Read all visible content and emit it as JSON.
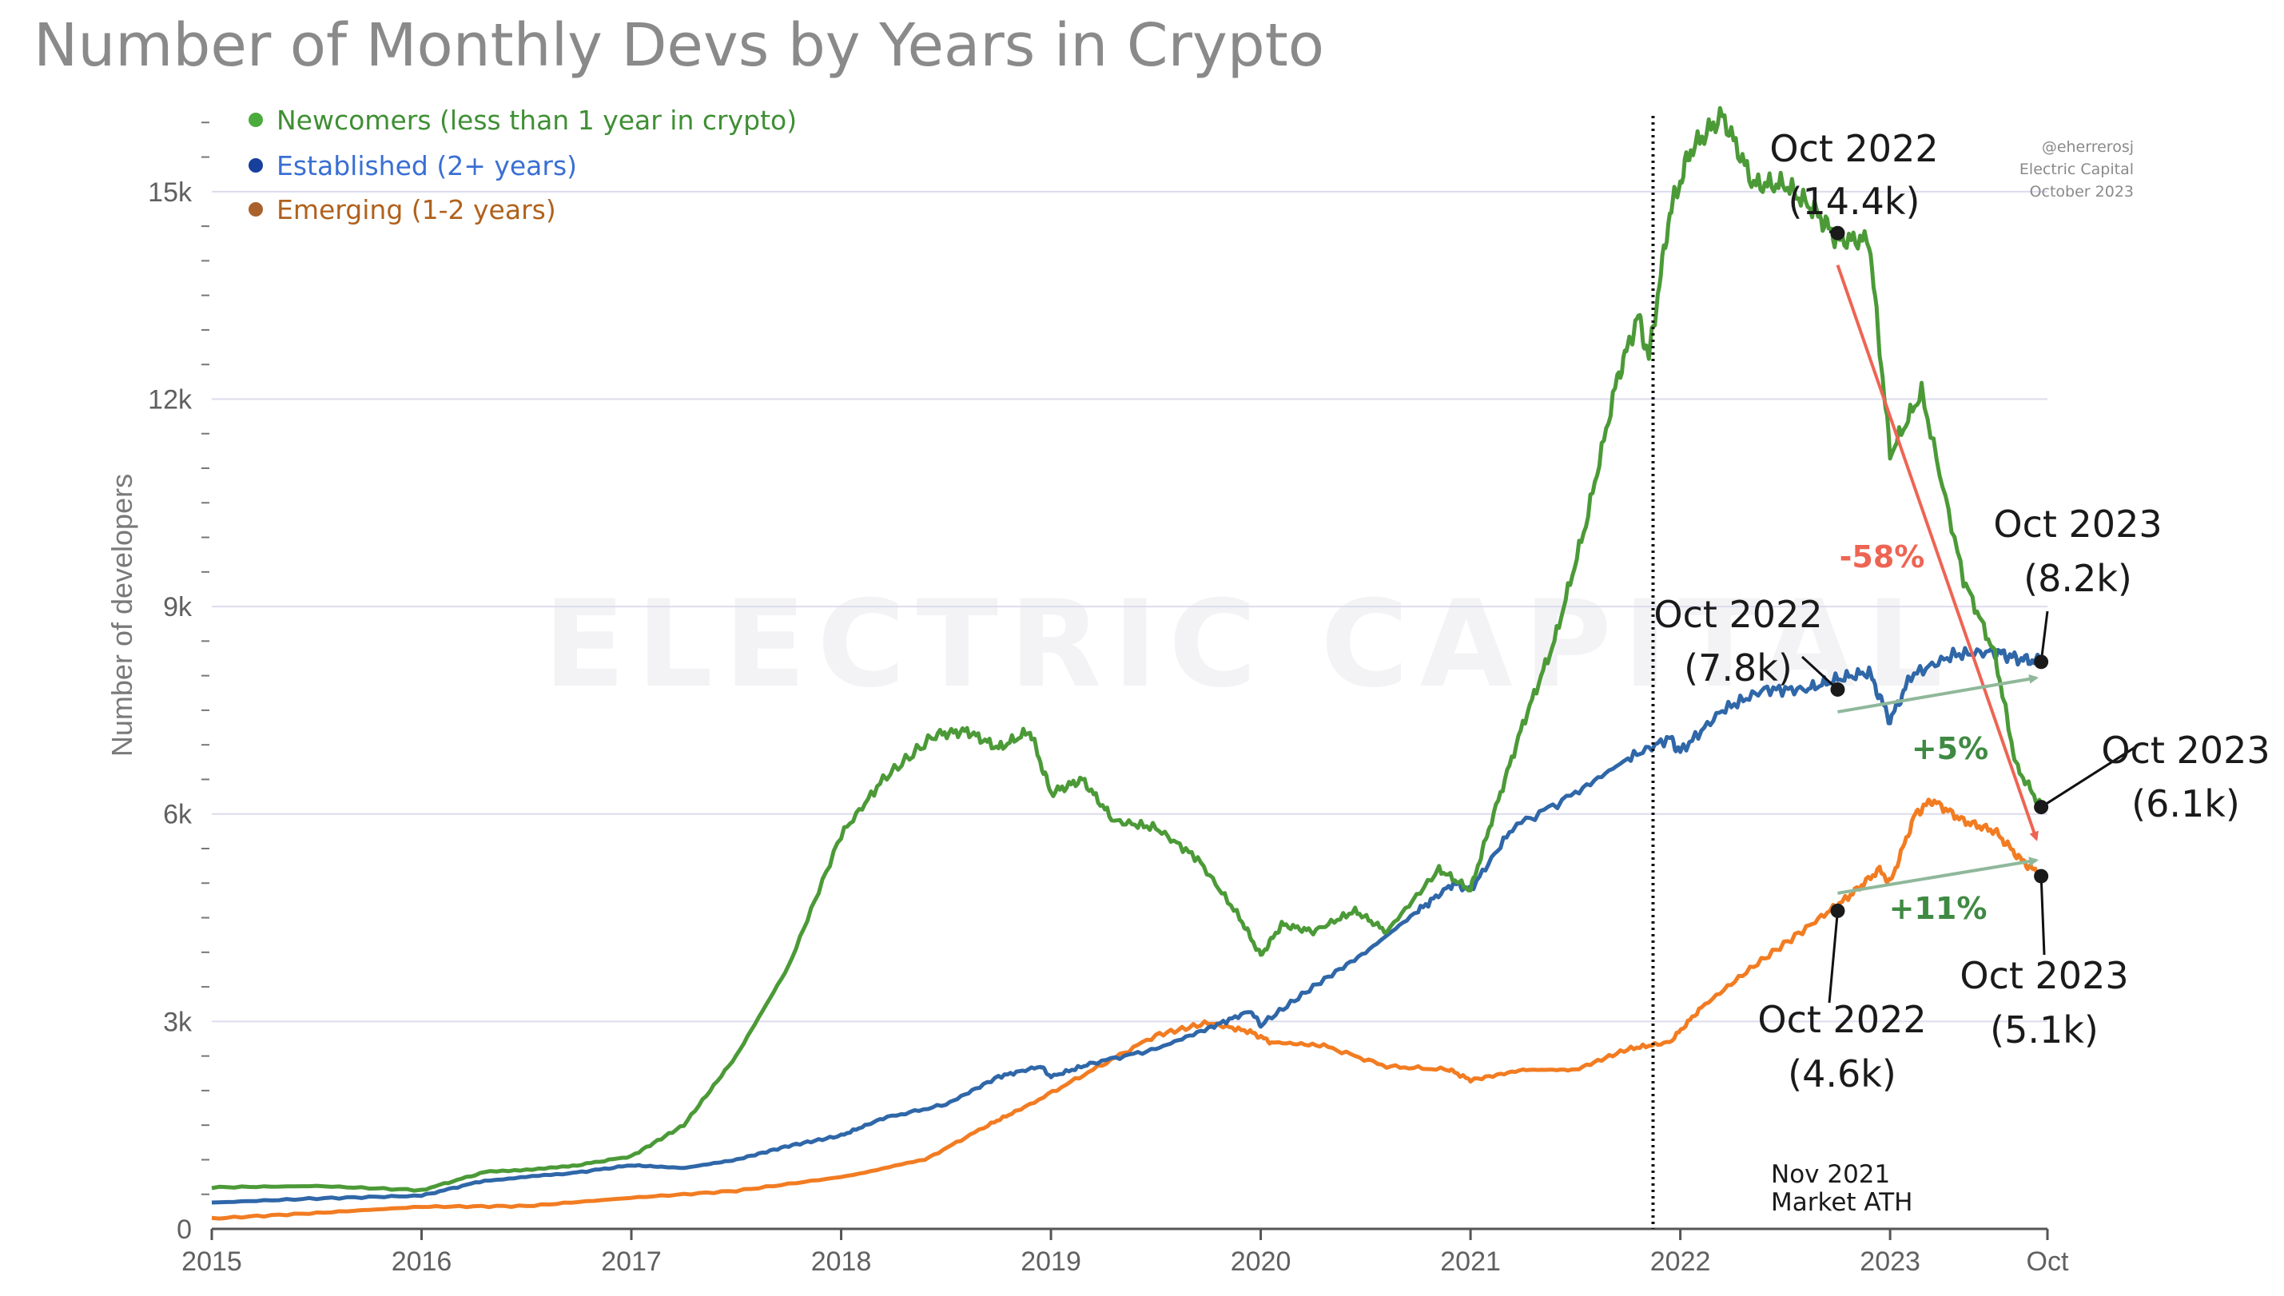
{
  "title": "Number of Monthly Devs by Years in Crypto",
  "credit": [
    "@eherrerosj",
    "Electric Capital",
    "October 2023"
  ],
  "watermark": "ELECTRIC CAPITAL",
  "vline_label": [
    "Nov 2021",
    "Market ATH"
  ],
  "colors": {
    "newcomers": "#4b9a37",
    "established": "#2f67a8",
    "emerging": "#f27c22",
    "red": "#ee6453",
    "arrow_green": "#8fb89a",
    "legend_newcomers": "#3f8f34",
    "legend_established": "#3a6fd3",
    "legend_emerging": "#b0611d",
    "legend_dot_newcomers": "#4bab3c",
    "legend_dot_established": "#173f9c",
    "legend_dot_emerging": "#a9622c",
    "grid": "#dcdcee",
    "pct_red": "#ee6453",
    "pct_green": "#3f8a43"
  },
  "annotations": {
    "newcomers_2022": [
      "Oct 2022",
      "(14.4k)"
    ],
    "newcomers_2023": [
      "Oct 2023",
      "(6.1k)"
    ],
    "established_2022": [
      "Oct 2022",
      "(7.8k)"
    ],
    "established_2023": [
      "Oct 2023",
      "(8.2k)"
    ],
    "emerging_2022": [
      "Oct 2022",
      "(4.6k)"
    ],
    "emerging_2023": [
      "Oct 2023",
      "(5.1k)"
    ],
    "pct_newcomers": "-58%",
    "pct_established": "+5%",
    "pct_emerging": "+11%"
  },
  "chart_data": {
    "type": "line",
    "title": "Number of Monthly Devs by Years in Crypto",
    "xlabel": "",
    "ylabel": "Number of developers",
    "x_tick_labels": [
      "2015",
      "2016",
      "2017",
      "2018",
      "2019",
      "2020",
      "2021",
      "2022",
      "2023",
      "Oct"
    ],
    "y_tick_labels": [
      "0",
      "3k",
      "6k",
      "9k",
      "12k",
      "15k"
    ],
    "y_ticks": [
      0,
      3000,
      6000,
      9000,
      12000,
      15000
    ],
    "xlim": [
      2015.0,
      2023.75
    ],
    "ylim": [
      0,
      16500
    ],
    "grid": "horizontal",
    "legend_position": "top-left",
    "vline": {
      "x": 2021.87,
      "label": "Nov 2021 Market ATH"
    },
    "series": [
      {
        "name": "Newcomers (less than 1 year in crypto)",
        "color": "#4b9a37",
        "points": [
          [
            2015.0,
            600
          ],
          [
            2015.5,
            620
          ],
          [
            2016.0,
            560
          ],
          [
            2016.3,
            820
          ],
          [
            2016.7,
            900
          ],
          [
            2017.0,
            1050
          ],
          [
            2017.25,
            1500
          ],
          [
            2017.5,
            2500
          ],
          [
            2017.75,
            3800
          ],
          [
            2018.0,
            5700
          ],
          [
            2018.2,
            6500
          ],
          [
            2018.45,
            7150
          ],
          [
            2018.6,
            7200
          ],
          [
            2018.75,
            6950
          ],
          [
            2018.9,
            7200
          ],
          [
            2019.0,
            6300
          ],
          [
            2019.15,
            6500
          ],
          [
            2019.3,
            5900
          ],
          [
            2019.5,
            5800
          ],
          [
            2019.7,
            5350
          ],
          [
            2019.9,
            4500
          ],
          [
            2020.0,
            3950
          ],
          [
            2020.1,
            4400
          ],
          [
            2020.25,
            4300
          ],
          [
            2020.45,
            4600
          ],
          [
            2020.6,
            4300
          ],
          [
            2020.85,
            5200
          ],
          [
            2021.0,
            4900
          ],
          [
            2021.1,
            5900
          ],
          [
            2021.25,
            7300
          ],
          [
            2021.4,
            8500
          ],
          [
            2021.55,
            10200
          ],
          [
            2021.7,
            12300
          ],
          [
            2021.8,
            13200
          ],
          [
            2021.85,
            12600
          ],
          [
            2021.95,
            14700
          ],
          [
            2022.05,
            15600
          ],
          [
            2022.2,
            16100
          ],
          [
            2022.35,
            15100
          ],
          [
            2022.5,
            15100
          ],
          [
            2022.65,
            14700
          ],
          [
            2022.75,
            14300
          ],
          [
            2022.9,
            14300
          ],
          [
            2023.0,
            11200
          ],
          [
            2023.15,
            12100
          ],
          [
            2023.35,
            9400
          ],
          [
            2023.5,
            8300
          ],
          [
            2023.6,
            6700
          ],
          [
            2023.72,
            6100
          ]
        ]
      },
      {
        "name": "Established (2+ years)",
        "color": "#2f67a8",
        "points": [
          [
            2015.0,
            380
          ],
          [
            2015.5,
            440
          ],
          [
            2016.0,
            480
          ],
          [
            2016.3,
            700
          ],
          [
            2016.7,
            800
          ],
          [
            2017.0,
            920
          ],
          [
            2017.25,
            880
          ],
          [
            2017.5,
            1000
          ],
          [
            2017.75,
            1200
          ],
          [
            2018.0,
            1350
          ],
          [
            2018.2,
            1600
          ],
          [
            2018.5,
            1800
          ],
          [
            2018.75,
            2200
          ],
          [
            2018.95,
            2350
          ],
          [
            2019.0,
            2200
          ],
          [
            2019.2,
            2400
          ],
          [
            2019.5,
            2600
          ],
          [
            2019.75,
            2900
          ],
          [
            2019.95,
            3150
          ],
          [
            2020.0,
            2950
          ],
          [
            2020.25,
            3500
          ],
          [
            2020.5,
            4000
          ],
          [
            2020.75,
            4600
          ],
          [
            2020.92,
            5000
          ],
          [
            2021.0,
            4900
          ],
          [
            2021.2,
            5800
          ],
          [
            2021.5,
            6300
          ],
          [
            2021.75,
            6800
          ],
          [
            2021.95,
            7100
          ],
          [
            2022.0,
            6900
          ],
          [
            2022.2,
            7500
          ],
          [
            2022.4,
            7800
          ],
          [
            2022.6,
            7800
          ],
          [
            2022.75,
            7950
          ],
          [
            2022.9,
            8050
          ],
          [
            2023.0,
            7350
          ],
          [
            2023.1,
            8000
          ],
          [
            2023.3,
            8300
          ],
          [
            2023.5,
            8350
          ],
          [
            2023.6,
            8250
          ],
          [
            2023.72,
            8200
          ]
        ]
      },
      {
        "name": "Emerging (1-2 years)",
        "color": "#f27c22",
        "points": [
          [
            2015.0,
            150
          ],
          [
            2015.5,
            230
          ],
          [
            2016.0,
            320
          ],
          [
            2016.5,
            330
          ],
          [
            2017.0,
            450
          ],
          [
            2017.5,
            550
          ],
          [
            2018.0,
            750
          ],
          [
            2018.4,
            1000
          ],
          [
            2018.7,
            1500
          ],
          [
            2018.9,
            1800
          ],
          [
            2019.2,
            2300
          ],
          [
            2019.5,
            2800
          ],
          [
            2019.75,
            2980
          ],
          [
            2019.95,
            2850
          ],
          [
            2020.05,
            2700
          ],
          [
            2020.3,
            2650
          ],
          [
            2020.6,
            2350
          ],
          [
            2020.9,
            2300
          ],
          [
            2021.0,
            2150
          ],
          [
            2021.25,
            2300
          ],
          [
            2021.5,
            2300
          ],
          [
            2021.75,
            2600
          ],
          [
            2021.95,
            2700
          ],
          [
            2022.1,
            3200
          ],
          [
            2022.35,
            3800
          ],
          [
            2022.6,
            4350
          ],
          [
            2022.8,
            4800
          ],
          [
            2022.95,
            5200
          ],
          [
            2023.0,
            5000
          ],
          [
            2023.12,
            6000
          ],
          [
            2023.2,
            6200
          ],
          [
            2023.35,
            5900
          ],
          [
            2023.5,
            5750
          ],
          [
            2023.62,
            5350
          ],
          [
            2023.72,
            5100
          ]
        ]
      }
    ],
    "highlight_points": [
      {
        "series": "Newcomers (less than 1 year in crypto)",
        "x": 2022.75,
        "y": 14400,
        "label": "Oct 2022 (14.4k)"
      },
      {
        "series": "Newcomers (less than 1 year in crypto)",
        "x": 2023.72,
        "y": 6100,
        "label": "Oct 2023 (6.1k)"
      },
      {
        "series": "Established (2+ years)",
        "x": 2022.75,
        "y": 7800,
        "label": "Oct 2022 (7.8k)"
      },
      {
        "series": "Established (2+ years)",
        "x": 2023.72,
        "y": 8200,
        "label": "Oct 2023 (8.2k)"
      },
      {
        "series": "Emerging (1-2 years)",
        "x": 2022.75,
        "y": 4600,
        "label": "Oct 2022 (4.6k)"
      },
      {
        "series": "Emerging (1-2 years)",
        "x": 2023.72,
        "y": 5100,
        "label": "Oct 2023 (5.1k)"
      }
    ],
    "changes": [
      {
        "series": "Newcomers (less than 1 year in crypto)",
        "label": "-58%"
      },
      {
        "series": "Established (2+ years)",
        "label": "+5%"
      },
      {
        "series": "Emerging (1-2 years)",
        "label": "+11%"
      }
    ]
  }
}
